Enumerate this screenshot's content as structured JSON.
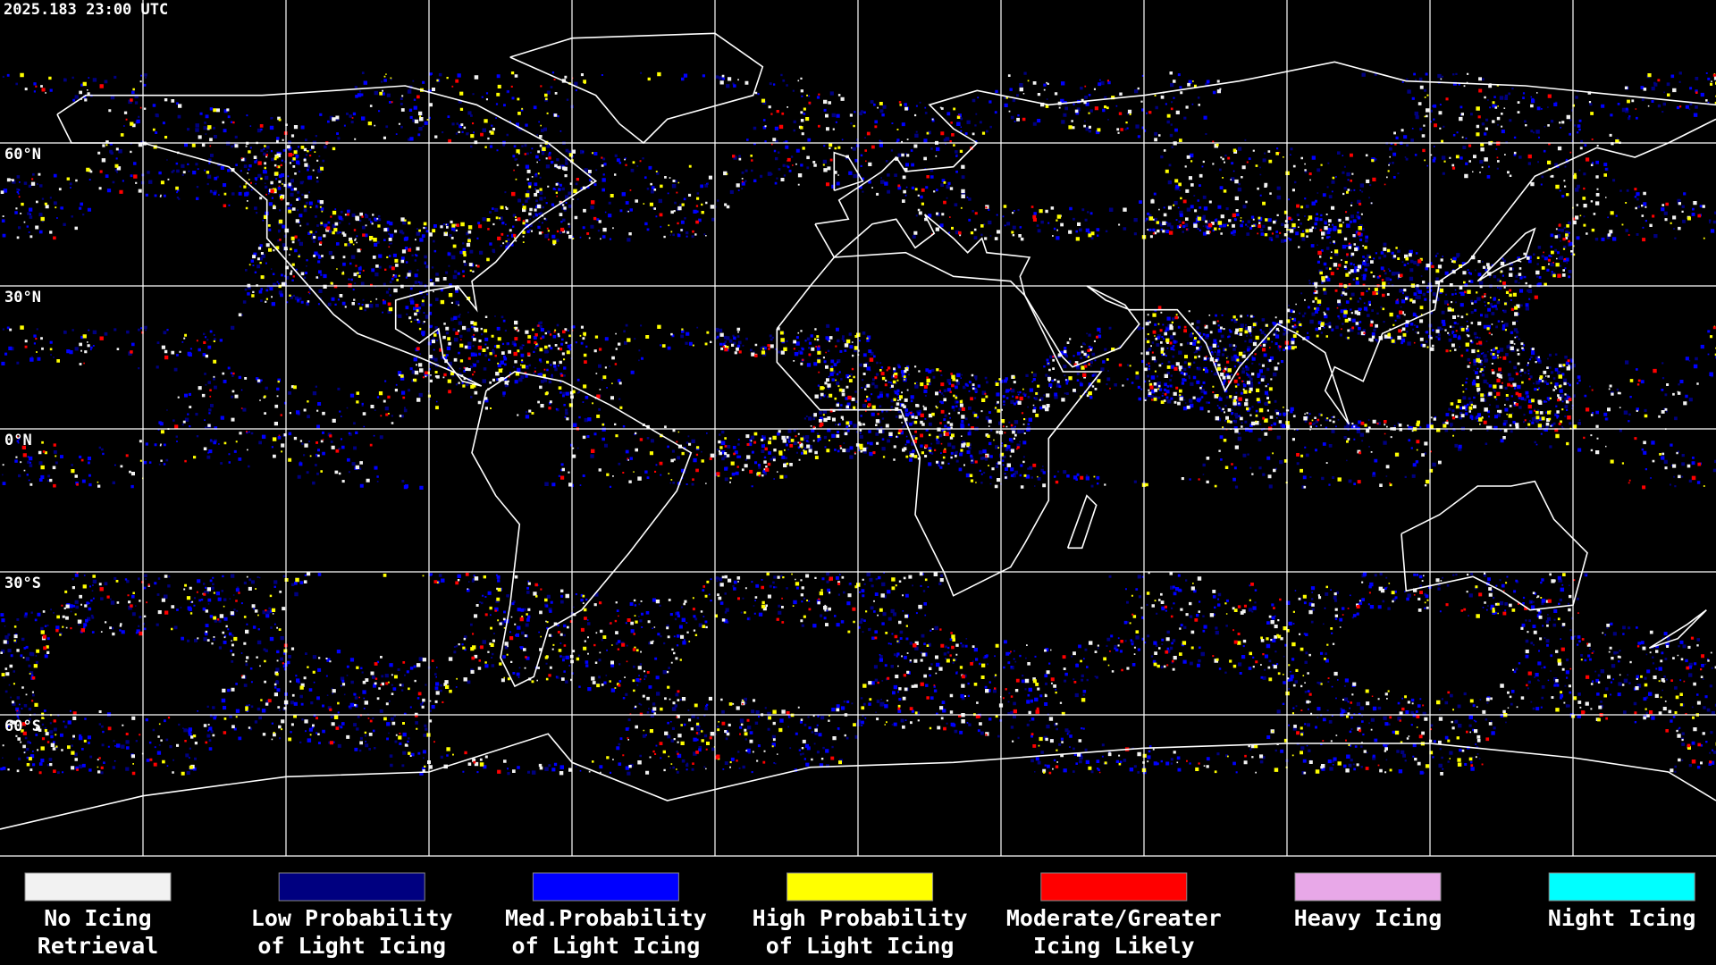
{
  "timestamp": "2025.183 23:00 UTC",
  "latitude_labels": [
    "60°N",
    "30°N",
    "0°N",
    "30°S",
    "60°S"
  ],
  "legend": [
    {
      "label": [
        "No Icing",
        "Retrieval"
      ],
      "color": "#f2f2f2"
    },
    {
      "label": [
        "Low Probability",
        "of Light Icing"
      ],
      "color": "#000080"
    },
    {
      "label": [
        "Med.Probability",
        "of Light Icing"
      ],
      "color": "#0000ff"
    },
    {
      "label": [
        "High Probability",
        "of Light Icing"
      ],
      "color": "#ffff00"
    },
    {
      "label": [
        "Moderate/Greater",
        "Icing Likely"
      ],
      "color": "#ff0000"
    },
    {
      "label": [
        "Heavy Icing"
      ],
      "color": "#e8a8e8"
    },
    {
      "label": [
        "Night Icing"
      ],
      "color": "#00ffff"
    }
  ]
}
